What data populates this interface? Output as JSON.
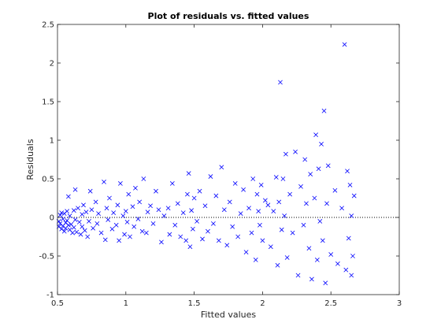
{
  "chart_data": {
    "type": "scatter",
    "title": "Plot of residuals vs. fitted values",
    "xlabel": "Fitted values",
    "ylabel": "Residuals",
    "xlim": [
      0.5,
      3
    ],
    "ylim": [
      -1,
      2.5
    ],
    "xticks": [
      0.5,
      1,
      1.5,
      2,
      2.5,
      3
    ],
    "xtick_labels": [
      "0.5",
      "1",
      "1.5",
      "2",
      "2.5",
      "3"
    ],
    "yticks": [
      -1,
      -0.5,
      0,
      0.5,
      1,
      1.5,
      2,
      2.5
    ],
    "ytick_labels": [
      "-1",
      "-0.5",
      "0",
      "0.5",
      "1",
      "1.5",
      "2",
      "2.5"
    ],
    "grid": false,
    "box": true,
    "reference_line": {
      "y": 0,
      "style": "dotted",
      "color": "#000000"
    },
    "marker": "x",
    "marker_color": "#0000ff",
    "axes_color": "#262626",
    "series": [
      {
        "points": [
          [
            0.51,
            -0.05
          ],
          [
            0.51,
            -0.12
          ],
          [
            0.52,
            0.03
          ],
          [
            0.52,
            -0.08
          ],
          [
            0.53,
            -0.15
          ],
          [
            0.53,
            0.06
          ],
          [
            0.54,
            -0.02
          ],
          [
            0.54,
            -0.11
          ],
          [
            0.55,
            -0.18
          ],
          [
            0.55,
            0.05
          ],
          [
            0.56,
            -0.07
          ],
          [
            0.56,
            -0.14
          ],
          [
            0.57,
            0.08
          ],
          [
            0.57,
            -0.04
          ],
          [
            0.58,
            -0.1
          ],
          [
            0.58,
            0.27
          ],
          [
            0.59,
            -0.16
          ],
          [
            0.59,
            0.02
          ],
          [
            0.6,
            -0.09
          ],
          [
            0.61,
            -0.2
          ],
          [
            0.62,
            0.09
          ],
          [
            0.62,
            -0.13
          ],
          [
            0.63,
            -0.03
          ],
          [
            0.63,
            0.36
          ],
          [
            0.64,
            -0.19
          ],
          [
            0.65,
            0.12
          ],
          [
            0.66,
            -0.06
          ],
          [
            0.67,
            -0.22
          ],
          [
            0.68,
            0.04
          ],
          [
            0.68,
            -0.12
          ],
          [
            0.69,
            0.16
          ],
          [
            0.7,
            -0.17
          ],
          [
            0.71,
            0.07
          ],
          [
            0.72,
            -0.25
          ],
          [
            0.73,
            -0.05
          ],
          [
            0.74,
            0.34
          ],
          [
            0.75,
            0.1
          ],
          [
            0.76,
            -0.14
          ],
          [
            0.78,
            0.2
          ],
          [
            0.79,
            -0.08
          ],
          [
            0.8,
            0.05
          ],
          [
            0.82,
            -0.2
          ],
          [
            0.84,
            0.46
          ],
          [
            0.85,
            -0.29
          ],
          [
            0.86,
            0.12
          ],
          [
            0.87,
            -0.03
          ],
          [
            0.88,
            0.25
          ],
          [
            0.9,
            -0.15
          ],
          [
            0.91,
            0.06
          ],
          [
            0.93,
            -0.1
          ],
          [
            0.94,
            0.16
          ],
          [
            0.95,
            -0.3
          ],
          [
            0.96,
            0.44
          ],
          [
            0.98,
            0.02
          ],
          [
            0.99,
            -0.22
          ],
          [
            1.0,
            0.08
          ],
          [
            1.01,
            -0.06
          ],
          [
            1.02,
            0.3
          ],
          [
            1.03,
            -0.25
          ],
          [
            1.05,
            0.14
          ],
          [
            1.06,
            -0.12
          ],
          [
            1.07,
            0.38
          ],
          [
            1.09,
            -0.02
          ],
          [
            1.1,
            0.2
          ],
          [
            1.12,
            -0.18
          ],
          [
            1.13,
            0.5
          ],
          [
            1.15,
            -0.2
          ],
          [
            1.16,
            0.07
          ],
          [
            1.18,
            0.15
          ],
          [
            1.2,
            -0.08
          ],
          [
            1.22,
            0.34
          ],
          [
            1.24,
            0.1
          ],
          [
            1.26,
            -0.32
          ],
          [
            1.28,
            0.02
          ],
          [
            1.31,
            0.12
          ],
          [
            1.32,
            -0.22
          ],
          [
            1.34,
            0.44
          ],
          [
            1.36,
            -0.1
          ],
          [
            1.38,
            0.18
          ],
          [
            1.4,
            -0.25
          ],
          [
            1.42,
            0.06
          ],
          [
            1.44,
            -0.3
          ],
          [
            1.45,
            0.3
          ],
          [
            1.46,
            0.57
          ],
          [
            1.47,
            -0.38
          ],
          [
            1.48,
            0.09
          ],
          [
            1.49,
            -0.15
          ],
          [
            1.5,
            0.25
          ],
          [
            1.52,
            -0.05
          ],
          [
            1.54,
            0.34
          ],
          [
            1.56,
            -0.28
          ],
          [
            1.58,
            0.15
          ],
          [
            1.6,
            -0.18
          ],
          [
            1.62,
            0.53
          ],
          [
            1.64,
            -0.08
          ],
          [
            1.66,
            0.28
          ],
          [
            1.68,
            -0.3
          ],
          [
            1.7,
            0.65
          ],
          [
            1.72,
            0.1
          ],
          [
            1.74,
            -0.36
          ],
          [
            1.76,
            0.2
          ],
          [
            1.78,
            -0.12
          ],
          [
            1.8,
            0.44
          ],
          [
            1.82,
            -0.25
          ],
          [
            1.84,
            0.05
          ],
          [
            1.86,
            0.36
          ],
          [
            1.88,
            -0.45
          ],
          [
            1.9,
            0.12
          ],
          [
            1.92,
            -0.2
          ],
          [
            1.93,
            0.5
          ],
          [
            1.95,
            -0.55
          ],
          [
            1.96,
            0.3
          ],
          [
            1.97,
            0.08
          ],
          [
            1.98,
            -0.1
          ],
          [
            1.99,
            0.42
          ],
          [
            2.0,
            -0.3
          ],
          [
            2.02,
            0.22
          ],
          [
            2.04,
            0.16
          ],
          [
            2.06,
            -0.38
          ],
          [
            2.08,
            0.08
          ],
          [
            2.1,
            0.52
          ],
          [
            2.11,
            -0.62
          ],
          [
            2.12,
            0.2
          ],
          [
            2.13,
            1.75
          ],
          [
            2.14,
            -0.16
          ],
          [
            2.15,
            0.5
          ],
          [
            2.16,
            0.02
          ],
          [
            2.17,
            0.82
          ],
          [
            2.18,
            -0.52
          ],
          [
            2.2,
            0.3
          ],
          [
            2.22,
            -0.2
          ],
          [
            2.24,
            0.85
          ],
          [
            2.26,
            -0.75
          ],
          [
            2.28,
            0.4
          ],
          [
            2.3,
            -0.1
          ],
          [
            2.31,
            0.75
          ],
          [
            2.32,
            0.18
          ],
          [
            2.34,
            -0.4
          ],
          [
            2.35,
            0.56
          ],
          [
            2.36,
            -0.8
          ],
          [
            2.38,
            0.25
          ],
          [
            2.39,
            1.07
          ],
          [
            2.4,
            -0.55
          ],
          [
            2.41,
            0.63
          ],
          [
            2.42,
            -0.05
          ],
          [
            2.43,
            0.95
          ],
          [
            2.44,
            -0.3
          ],
          [
            2.45,
            1.38
          ],
          [
            2.46,
            -0.85
          ],
          [
            2.47,
            0.18
          ],
          [
            2.48,
            0.67
          ],
          [
            2.5,
            -0.48
          ],
          [
            2.53,
            0.35
          ],
          [
            2.55,
            -0.6
          ],
          [
            2.58,
            0.12
          ],
          [
            2.6,
            2.24
          ],
          [
            2.61,
            -0.68
          ],
          [
            2.62,
            0.6
          ],
          [
            2.63,
            -0.27
          ],
          [
            2.64,
            0.42
          ],
          [
            2.65,
            -0.75
          ],
          [
            2.65,
            0.02
          ],
          [
            2.66,
            -0.5
          ],
          [
            2.67,
            0.28
          ]
        ]
      }
    ]
  }
}
